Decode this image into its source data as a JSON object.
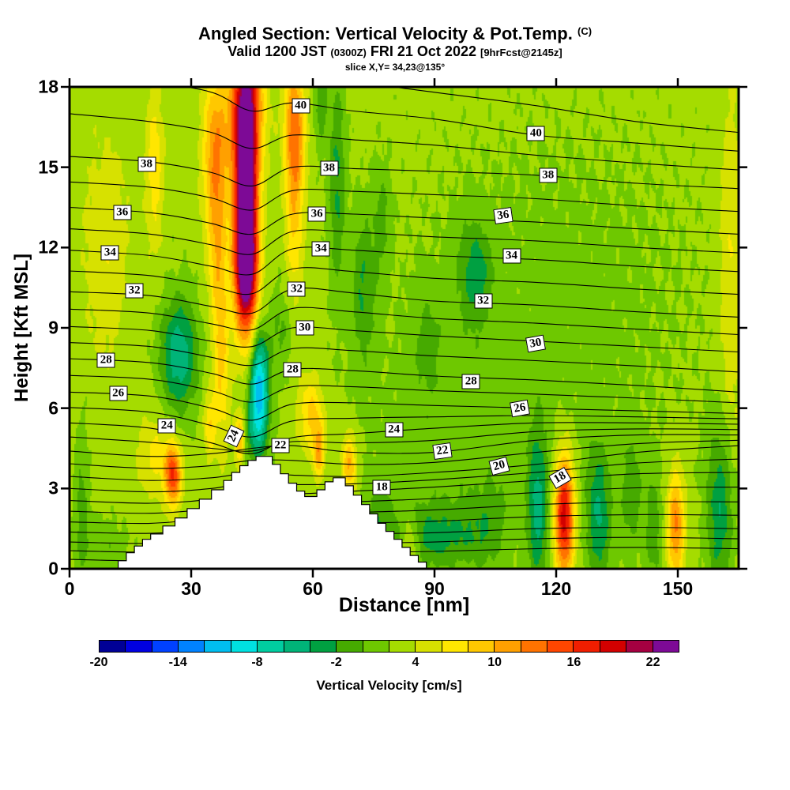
{
  "title": {
    "main": "Angled Section: Vertical Velocity & Pot.Temp.",
    "unit": "(C)",
    "valid": "Valid 1200 JST",
    "valid_zulu": "(0300Z)",
    "date": "FRI 21 Oct 2022",
    "fcst": "[9hrFcst@2145z]",
    "slice": "slice X,Y= 34,23@135°"
  },
  "axes": {
    "x": {
      "label": "Distance [nm]",
      "min": 0,
      "max": 165,
      "ticks": [
        0,
        30,
        60,
        90,
        120,
        150
      ]
    },
    "y": {
      "label": "Height [Kft MSL]",
      "min": 0,
      "max": 18,
      "ticks": [
        0,
        3,
        6,
        9,
        12,
        15,
        18
      ]
    }
  },
  "colorbar": {
    "caption": "Vertical Velocity [cm/s]",
    "min": -20,
    "max": 24,
    "step": 2,
    "tick_labels": [
      -20,
      -14,
      -8,
      -2,
      4,
      10,
      16,
      22
    ],
    "colors": [
      "#000096",
      "#0000e1",
      "#0041ff",
      "#0082ff",
      "#00bef0",
      "#00e1e1",
      "#00cda0",
      "#00b478",
      "#00a041",
      "#46aa00",
      "#6ec800",
      "#a5dc00",
      "#d7e100",
      "#ffe600",
      "#ffc800",
      "#ffa000",
      "#ff7300",
      "#ff4600",
      "#f01e00",
      "#d20000",
      "#a50041",
      "#7d0a96"
    ]
  },
  "chart_data": {
    "type": "heatmap",
    "subtype": "vertical-cross-section with potential-temperature contours and terrain",
    "title": "Angled Section: Vertical Velocity & Pot.Temp. (C)",
    "xlabel": "Distance [nm]",
    "ylabel": "Height [Kft MSL]",
    "xlim": [
      0,
      165
    ],
    "ylim": [
      0,
      18
    ],
    "fill_units": "cm/s",
    "fill_background": 2.7,
    "fill_features": [
      {
        "x": 43.5,
        "z": 14,
        "sx": 2.0,
        "sz": 2.8,
        "a": 24
      },
      {
        "x": 43.5,
        "z": 17.5,
        "sx": 3.0,
        "sz": 1.8,
        "a": 12
      },
      {
        "x": 43.5,
        "z": 11,
        "sx": 2.0,
        "sz": 1.6,
        "a": 14
      },
      {
        "x": 36,
        "z": 15.5,
        "sx": 2.2,
        "sz": 2.2,
        "a": 9
      },
      {
        "x": 36.5,
        "z": 11.5,
        "sx": 1.6,
        "sz": 2.0,
        "a": 5
      },
      {
        "x": 55.5,
        "z": 16.5,
        "sx": 1.8,
        "sz": 1.8,
        "a": 10
      },
      {
        "x": 55.5,
        "z": 13,
        "sx": 1.6,
        "sz": 2.2,
        "a": 5
      },
      {
        "x": 21,
        "z": 15,
        "sx": 1.6,
        "sz": 2.2,
        "a": 4.5
      },
      {
        "x": 9,
        "z": 12,
        "sx": 4.0,
        "sz": 3.0,
        "a": 3
      },
      {
        "x": 37.5,
        "z": 7.5,
        "sx": 1.4,
        "sz": 2.2,
        "a": 5.5
      },
      {
        "x": 42,
        "z": 4.9,
        "sx": 0.9,
        "sz": 0.7,
        "a": 8
      },
      {
        "x": 34.5,
        "z": 5.4,
        "sx": 1.0,
        "sz": 0.9,
        "a": 5
      },
      {
        "x": 27,
        "z": 8,
        "sx": 3.2,
        "sz": 1.5,
        "a": -8.5
      },
      {
        "x": 46.8,
        "z": 7,
        "sx": 1.6,
        "sz": 1.3,
        "a": -13
      },
      {
        "x": 46,
        "z": 5.2,
        "sx": 2.2,
        "sz": 1.0,
        "a": -6
      },
      {
        "x": 52,
        "z": 8.8,
        "sx": 2.0,
        "sz": 1.2,
        "a": -3
      },
      {
        "x": 66,
        "z": 14.5,
        "sx": 1.4,
        "sz": 2.8,
        "a": -5
      },
      {
        "x": 72.5,
        "z": 10.5,
        "sx": 2.2,
        "sz": 2.0,
        "a": -4.5
      },
      {
        "x": 77,
        "z": 13,
        "sx": 1.5,
        "sz": 1.5,
        "a": -3
      },
      {
        "x": 62,
        "z": 17.5,
        "sx": 1.2,
        "sz": 1.2,
        "a": -4
      },
      {
        "x": 100,
        "z": 11,
        "sx": 3.0,
        "sz": 1.4,
        "a": -5
      },
      {
        "x": 88,
        "z": 8.5,
        "sx": 3.0,
        "sz": 1.5,
        "a": -2.5
      },
      {
        "x": 59.5,
        "z": 5.8,
        "sx": 2.2,
        "sz": 1.0,
        "a": 6
      },
      {
        "x": 61.5,
        "z": 4.4,
        "sx": 1.0,
        "sz": 0.7,
        "a": 8
      },
      {
        "x": 69,
        "z": 3.9,
        "sx": 1.3,
        "sz": 0.8,
        "a": 8
      },
      {
        "x": 25.5,
        "z": 3.5,
        "sx": 1.4,
        "sz": 0.8,
        "a": 13
      },
      {
        "x": 21,
        "z": 4.2,
        "sx": 3.0,
        "sz": 1.0,
        "a": 4
      },
      {
        "x": 122,
        "z": 2.0,
        "sx": 1.7,
        "sz": 1.6,
        "a": 17
      },
      {
        "x": 115.5,
        "z": 2.2,
        "sx": 1.8,
        "sz": 2.0,
        "a": -7
      },
      {
        "x": 130.5,
        "z": 2.0,
        "sx": 2.2,
        "sz": 1.8,
        "a": -6.5
      },
      {
        "x": 138.5,
        "z": 2.8,
        "sx": 1.8,
        "sz": 1.5,
        "a": -4
      },
      {
        "x": 144,
        "z": 1.5,
        "sx": 1.5,
        "sz": 1.5,
        "a": -4
      },
      {
        "x": 149.5,
        "z": 1.6,
        "sx": 1.5,
        "sz": 1.4,
        "a": 10
      },
      {
        "x": 160.5,
        "z": 2.2,
        "sx": 2.4,
        "sz": 2.2,
        "a": -6.5
      },
      {
        "x": 90,
        "z": 1.2,
        "sx": 7.0,
        "sz": 0.9,
        "a": -5
      },
      {
        "x": 103,
        "z": 1.5,
        "sx": 4.0,
        "sz": 1.2,
        "a": -3
      },
      {
        "x": 76,
        "z": 1.5,
        "sx": 2.5,
        "sz": 1.2,
        "a": -4
      },
      {
        "x": 84,
        "z": 0.8,
        "sx": 1.5,
        "sz": 0.8,
        "a": 5
      },
      {
        "x": 120,
        "z": 10,
        "sx": 28,
        "sz": 5,
        "a": -1.3
      },
      {
        "x": 95,
        "z": 4.5,
        "sx": 18,
        "sz": 2.5,
        "a": -1.4
      },
      {
        "x": 163,
        "z": 11,
        "sx": 2.0,
        "sz": 5.0,
        "a": 3.5
      },
      {
        "x": 3,
        "z": 2.5,
        "sx": 1.2,
        "sz": 2.0,
        "a": -3.5
      },
      {
        "x": 8,
        "z": 0.8,
        "sx": 4.0,
        "sz": 0.8,
        "a": -2.5
      }
    ],
    "terrain_profile": [
      {
        "x": 12,
        "h": 0.3
      },
      {
        "x": 14,
        "h": 0.6
      },
      {
        "x": 16,
        "h": 0.85
      },
      {
        "x": 18,
        "h": 1.1
      },
      {
        "x": 20,
        "h": 1.3
      },
      {
        "x": 23,
        "h": 1.6
      },
      {
        "x": 26,
        "h": 1.9
      },
      {
        "x": 29,
        "h": 2.25
      },
      {
        "x": 32,
        "h": 2.6
      },
      {
        "x": 35,
        "h": 2.95
      },
      {
        "x": 38,
        "h": 3.3
      },
      {
        "x": 40,
        "h": 3.6
      },
      {
        "x": 42,
        "h": 3.85
      },
      {
        "x": 44,
        "h": 4.05
      },
      {
        "x": 46,
        "h": 4.2
      },
      {
        "x": 50,
        "h": 3.9
      },
      {
        "x": 52,
        "h": 3.55
      },
      {
        "x": 54,
        "h": 3.2
      },
      {
        "x": 56,
        "h": 2.9
      },
      {
        "x": 58,
        "h": 2.7
      },
      {
        "x": 61,
        "h": 2.95
      },
      {
        "x": 63,
        "h": 3.25
      },
      {
        "x": 65,
        "h": 3.4
      },
      {
        "x": 68,
        "h": 3.1
      },
      {
        "x": 70,
        "h": 2.75
      },
      {
        "x": 72,
        "h": 2.4
      },
      {
        "x": 74,
        "h": 2.05
      },
      {
        "x": 76,
        "h": 1.7
      },
      {
        "x": 78,
        "h": 1.4
      },
      {
        "x": 80,
        "h": 1.1
      },
      {
        "x": 82,
        "h": 0.8
      },
      {
        "x": 84,
        "h": 0.5
      },
      {
        "x": 86,
        "h": 0.25
      },
      {
        "x": 88,
        "h": 0
      }
    ],
    "isentropes": {
      "units": "C",
      "contour_interval": 1,
      "x_stations": [
        0,
        20,
        35,
        45,
        55,
        70,
        90,
        115,
        140,
        165
      ],
      "curves": [
        {
          "theta": 12,
          "z": [
            0.35,
            0.3,
            0.45,
            0.6,
            0.5,
            0.6,
            0.65,
            0.75,
            0.8,
            0.75
          ]
        },
        {
          "theta": 14,
          "z": [
            1.0,
            0.95,
            1.1,
            1.3,
            1.2,
            1.3,
            1.35,
            1.5,
            1.55,
            1.5
          ]
        },
        {
          "theta": 16,
          "z": [
            1.75,
            1.7,
            1.9,
            2.1,
            2.0,
            2.1,
            2.2,
            2.4,
            2.5,
            2.5
          ]
        },
        {
          "theta": 18,
          "z": [
            2.55,
            2.45,
            2.6,
            2.9,
            2.8,
            2.9,
            3.05,
            3.3,
            3.55,
            3.6
          ]
        },
        {
          "theta": 20,
          "z": [
            3.45,
            3.3,
            3.4,
            3.6,
            3.5,
            3.45,
            3.6,
            3.9,
            4.35,
            4.6
          ]
        },
        {
          "theta": 22,
          "z": [
            4.4,
            4.2,
            4.3,
            4.5,
            4.6,
            4.35,
            4.35,
            4.8,
            5.0,
            5.0
          ]
        },
        {
          "theta": 24,
          "z": [
            5.45,
            5.25,
            4.7,
            4.3,
            4.9,
            5.05,
            5.25,
            5.45,
            5.45,
            5.4
          ]
        },
        {
          "theta": 26,
          "z": [
            6.6,
            6.45,
            6.0,
            5.55,
            6.15,
            6.2,
            6.1,
            6.0,
            5.9,
            5.8
          ]
        },
        {
          "theta": 28,
          "z": [
            7.85,
            7.7,
            7.3,
            6.9,
            7.45,
            7.4,
            7.2,
            7.05,
            6.85,
            6.6
          ]
        },
        {
          "theta": 30,
          "z": [
            9.05,
            8.9,
            8.5,
            8.3,
            9.0,
            8.9,
            8.7,
            8.5,
            8.3,
            8.1
          ]
        },
        {
          "theta": 32,
          "z": [
            10.35,
            10.2,
            9.8,
            9.55,
            10.45,
            10.3,
            10.0,
            9.85,
            9.6,
            9.4
          ]
        },
        {
          "theta": 34,
          "z": [
            11.9,
            11.7,
            11.3,
            11.0,
            11.95,
            11.9,
            11.7,
            11.55,
            11.3,
            11.1
          ]
        },
        {
          "theta": 36,
          "z": [
            13.5,
            13.3,
            12.9,
            12.5,
            13.25,
            13.25,
            13.1,
            12.95,
            12.7,
            12.5
          ]
        },
        {
          "theta": 38,
          "z": [
            15.4,
            15.2,
            14.8,
            14.3,
            15.0,
            14.95,
            14.85,
            14.7,
            14.4,
            14.2
          ]
        },
        {
          "theta": 40,
          "z": [
            18.6,
            18.2,
            17.8,
            17.1,
            17.4,
            17.1,
            16.8,
            16.2,
            15.9,
            15.6
          ]
        },
        {
          "theta": 41,
          "z": [
            20.2,
            19.7,
            19.3,
            18.5,
            18.6,
            18.2,
            17.8,
            17.3,
            16.7,
            16.3
          ]
        }
      ],
      "labels": [
        {
          "v": 40,
          "x": 57,
          "z": 17.3,
          "r": 0
        },
        {
          "v": 40,
          "x": 115,
          "z": 16.25,
          "r": 0
        },
        {
          "v": 38,
          "x": 19,
          "z": 15.1,
          "r": 0
        },
        {
          "v": 38,
          "x": 64,
          "z": 14.95,
          "r": 0
        },
        {
          "v": 38,
          "x": 118,
          "z": 14.7,
          "r": 0
        },
        {
          "v": 36,
          "x": 13,
          "z": 13.3,
          "r": 0
        },
        {
          "v": 36,
          "x": 61,
          "z": 13.25,
          "r": 0
        },
        {
          "v": 36,
          "x": 107,
          "z": 13.2,
          "r": -8
        },
        {
          "v": 34,
          "x": 10,
          "z": 11.8,
          "r": 0
        },
        {
          "v": 34,
          "x": 62,
          "z": 11.95,
          "r": 0
        },
        {
          "v": 34,
          "x": 109,
          "z": 11.7,
          "r": 0
        },
        {
          "v": 32,
          "x": 16,
          "z": 10.4,
          "r": 0
        },
        {
          "v": 32,
          "x": 56,
          "z": 10.45,
          "r": 0
        },
        {
          "v": 32,
          "x": 102,
          "z": 10.0,
          "r": 0
        },
        {
          "v": 30,
          "x": 58,
          "z": 9.0,
          "r": 0
        },
        {
          "v": 30,
          "x": 115,
          "z": 8.4,
          "r": -10
        },
        {
          "v": 28,
          "x": 9,
          "z": 7.8,
          "r": 0
        },
        {
          "v": 28,
          "x": 55,
          "z": 7.45,
          "r": 0
        },
        {
          "v": 28,
          "x": 99,
          "z": 7.0,
          "r": 0
        },
        {
          "v": 26,
          "x": 12,
          "z": 6.55,
          "r": 0
        },
        {
          "v": 26,
          "x": 111,
          "z": 6.0,
          "r": -10
        },
        {
          "v": 24,
          "x": 24,
          "z": 5.35,
          "r": 0
        },
        {
          "v": 24,
          "x": 40.5,
          "z": 4.95,
          "r": -65
        },
        {
          "v": 24,
          "x": 80,
          "z": 5.2,
          "r": 0
        },
        {
          "v": 22,
          "x": 52,
          "z": 4.6,
          "r": 0
        },
        {
          "v": 22,
          "x": 92,
          "z": 4.4,
          "r": -8
        },
        {
          "v": 20,
          "x": 106,
          "z": 3.85,
          "r": -15
        },
        {
          "v": 18,
          "x": 77,
          "z": 3.05,
          "r": 0
        },
        {
          "v": 18,
          "x": 121,
          "z": 3.4,
          "r": -30
        }
      ]
    },
    "colorbar_tick_labels": [
      -20,
      -14,
      -8,
      -2,
      4,
      10,
      16,
      22
    ]
  }
}
